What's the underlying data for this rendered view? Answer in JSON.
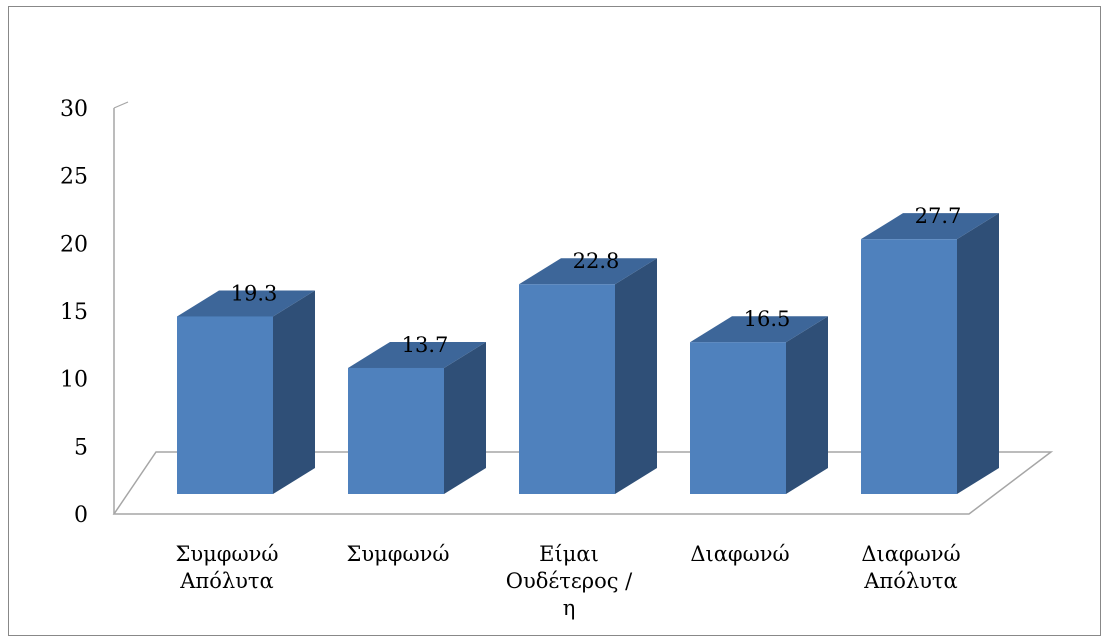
{
  "chart_data": {
    "type": "bar",
    "style": "3d-column",
    "categories": [
      [
        "Συμφωνώ",
        "Απόλυτα"
      ],
      [
        "Συμφωνώ"
      ],
      [
        "Είμαι",
        "Ουδέτερος /",
        "η"
      ],
      [
        "Διαφωνώ"
      ],
      [
        "Διαφωνώ",
        "Απόλυτα"
      ]
    ],
    "values": [
      19.3,
      13.7,
      22.8,
      16.5,
      27.7
    ],
    "value_labels": [
      "19.3",
      "13.7",
      "22.8",
      "16.5",
      "27.7"
    ],
    "ylim": [
      0,
      30
    ],
    "yticks": [
      "0",
      "5",
      "10",
      "15",
      "20",
      "25",
      "30"
    ],
    "title": "",
    "xlabel": "",
    "ylabel": "",
    "legend": "none",
    "grid": false,
    "colors": {
      "bar_front": "#4f81bd",
      "bar_side": "#2f4f77",
      "bar_top": "#3d6699",
      "axis": "#a6a6a6"
    }
  }
}
